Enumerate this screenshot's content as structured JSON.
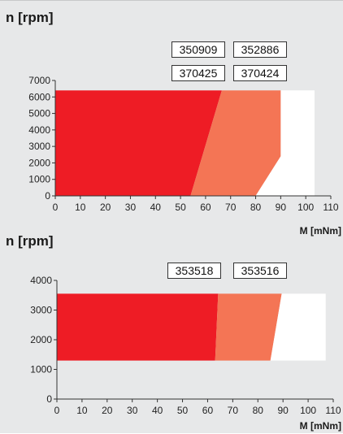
{
  "colors": {
    "background": "#e7e8e9",
    "zone_dark": "#ee1c25",
    "zone_light": "#f47555",
    "zone_white": "#ffffff"
  },
  "chart_data": [
    {
      "type": "area",
      "ylabel": "n [rpm]",
      "xlabel": "M [mNm]",
      "xlim": [
        0,
        110
      ],
      "ylim": [
        0,
        7000
      ],
      "xticks": [
        0,
        10,
        20,
        30,
        40,
        50,
        60,
        70,
        80,
        90,
        100,
        110
      ],
      "yticks": [
        0,
        1000,
        2000,
        3000,
        4000,
        5000,
        6000,
        7000
      ],
      "labels": [
        "350909",
        "352886",
        "370425",
        "370424"
      ],
      "series": [
        {
          "color": "#ee1c25",
          "points": [
            [
              0,
              0
            ],
            [
              54,
              0
            ],
            [
              66.5,
              6400
            ],
            [
              0,
              6400
            ]
          ]
        },
        {
          "color": "#f47555",
          "points": [
            [
              54,
              0
            ],
            [
              80,
              0
            ],
            [
              90,
              2400
            ],
            [
              90,
              6400
            ],
            [
              66.5,
              6400
            ]
          ]
        },
        {
          "color": "#ffffff",
          "points": [
            [
              80,
              0
            ],
            [
              103.5,
              0
            ],
            [
              103.5,
              6400
            ],
            [
              90,
              6400
            ],
            [
              90,
              2400
            ]
          ]
        }
      ]
    },
    {
      "type": "area",
      "ylabel": "n [rpm]",
      "xlabel": "M [mNm]",
      "xlim": [
        0,
        110
      ],
      "ylim": [
        0,
        4000
      ],
      "xticks": [
        0,
        10,
        20,
        30,
        40,
        50,
        60,
        70,
        80,
        90,
        100,
        110
      ],
      "yticks": [
        0,
        1000,
        2000,
        3000,
        4000
      ],
      "labels": [
        "353518",
        "353516"
      ],
      "series": [
        {
          "color": "#ee1c25",
          "points": [
            [
              0,
              1300
            ],
            [
              63,
              1300
            ],
            [
              64.2,
              3550
            ],
            [
              0,
              3550
            ]
          ]
        },
        {
          "color": "#f47555",
          "points": [
            [
              63,
              1300
            ],
            [
              85,
              1300
            ],
            [
              89.5,
              3550
            ],
            [
              64.2,
              3550
            ]
          ]
        },
        {
          "color": "#ffffff",
          "points": [
            [
              85,
              1300
            ],
            [
              107,
              1300
            ],
            [
              107,
              3550
            ],
            [
              89.5,
              3550
            ]
          ]
        }
      ]
    }
  ]
}
